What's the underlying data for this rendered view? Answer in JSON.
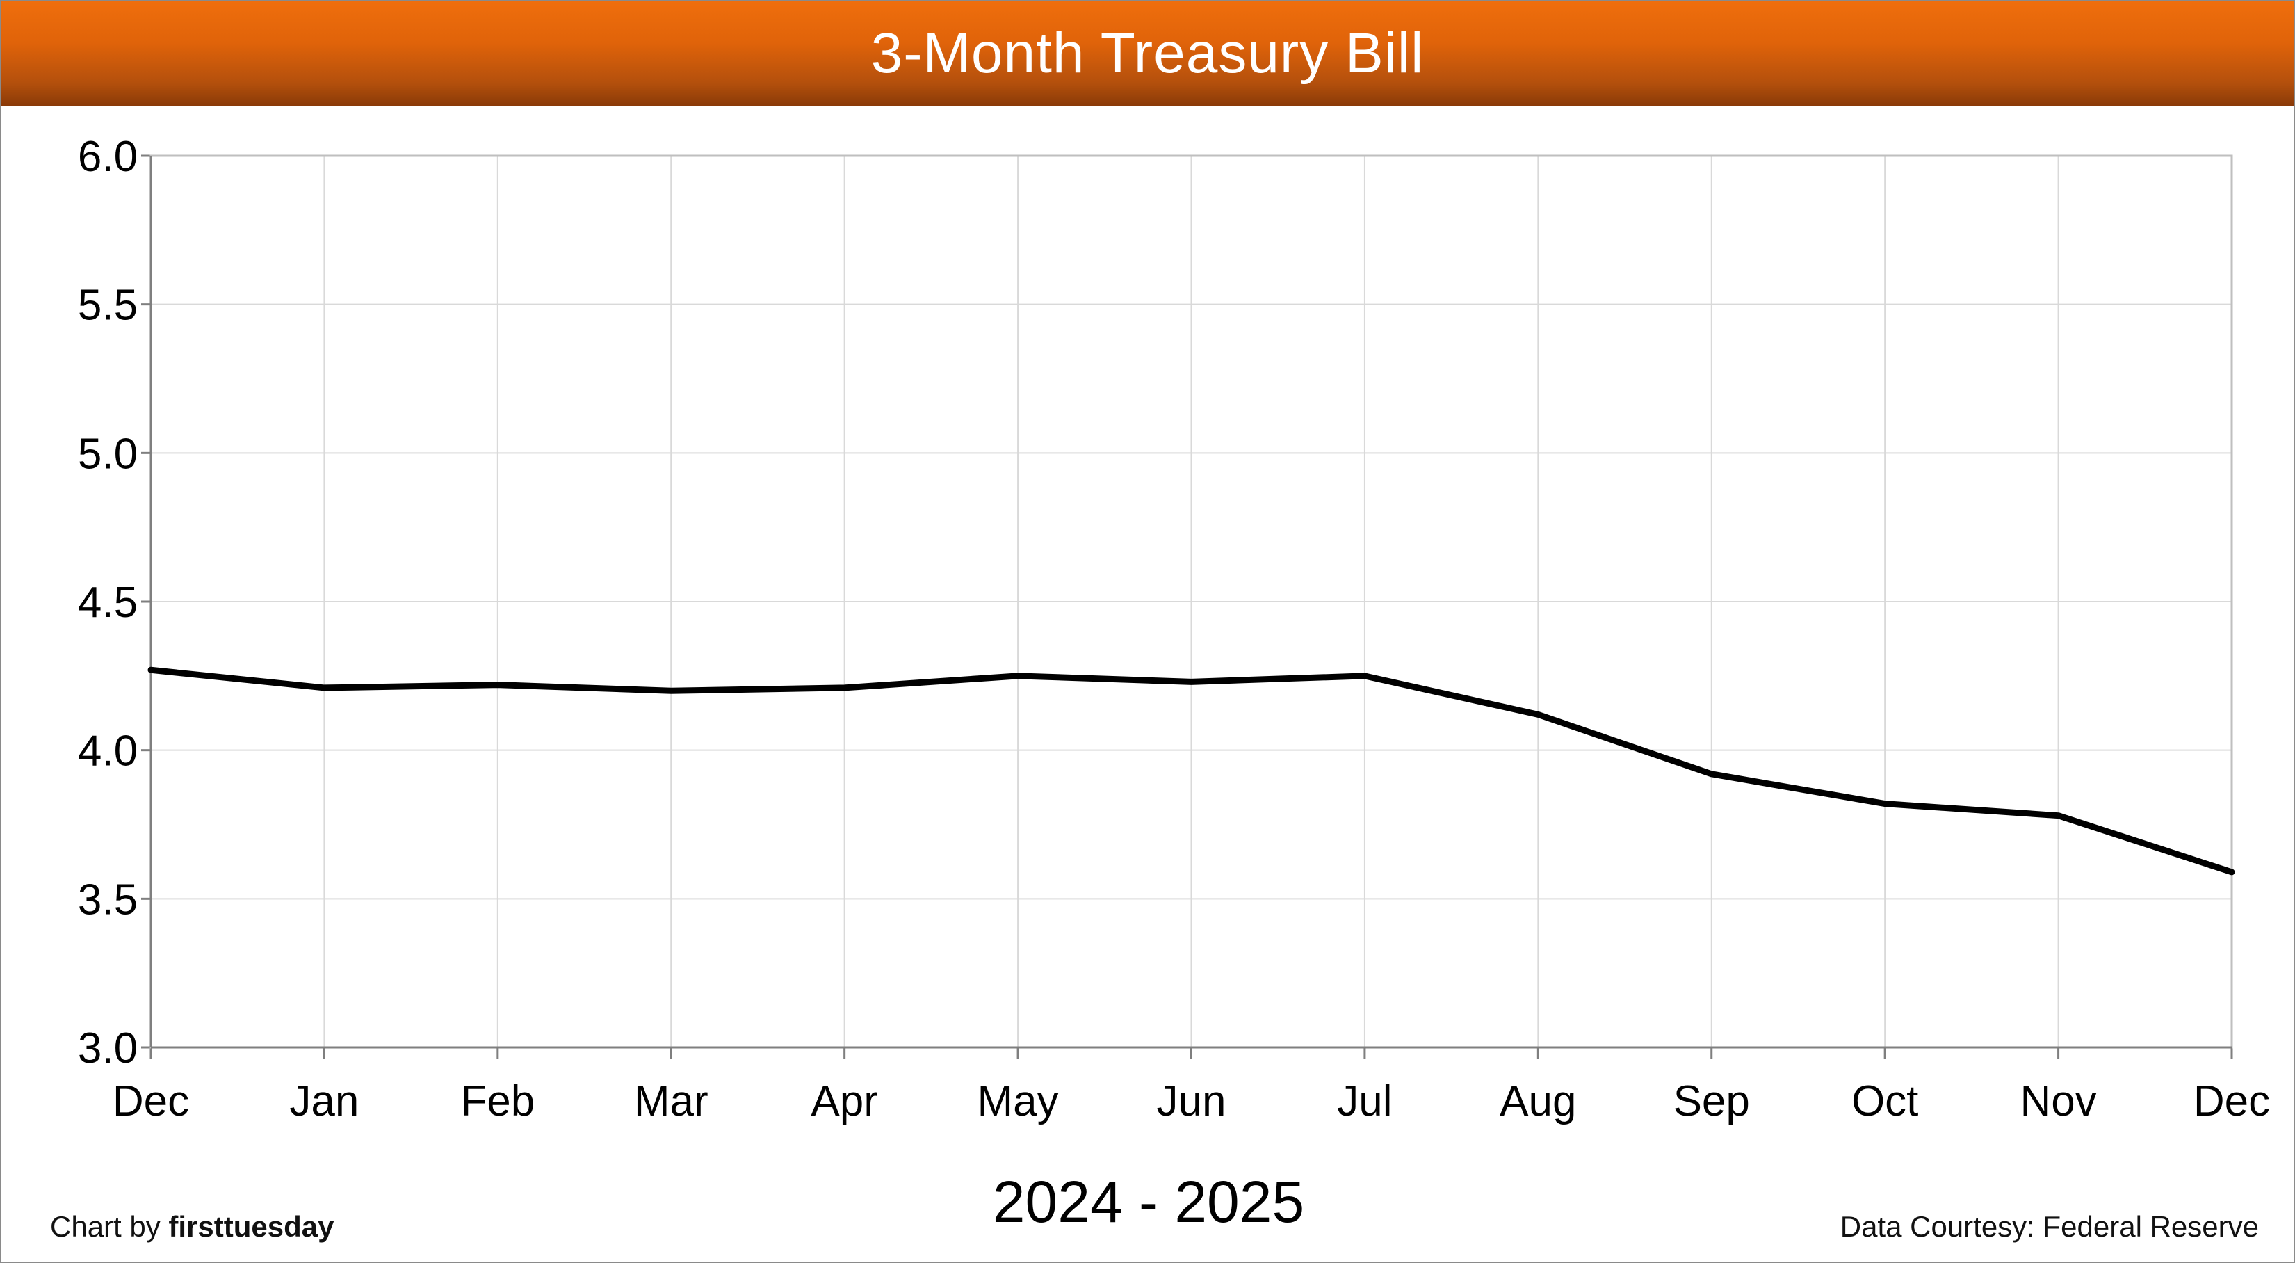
{
  "header": {
    "title": "3-Month Treasury Bill"
  },
  "footer": {
    "credit_prefix": "Chart by ",
    "credit_brand": "firsttuesday",
    "source": "Data Courtesy: Federal Reserve"
  },
  "colors": {
    "banner_top": "#ef6e0c",
    "banner_bottom": "#8a3a08",
    "line": "#000000",
    "grid": "#d9d9d9",
    "axis": "#7f7f7f"
  },
  "chart_data": {
    "type": "line",
    "title": "3-Month Treasury Bill",
    "xlabel": "2024 - 2025",
    "ylabel": "",
    "categories": [
      "Dec",
      "Jan",
      "Feb",
      "Mar",
      "Apr",
      "May",
      "Jun",
      "Jul",
      "Aug",
      "Sep",
      "Oct",
      "Nov",
      "Dec"
    ],
    "series": [
      {
        "values": [
          4.27,
          4.21,
          4.22,
          4.2,
          4.21,
          4.25,
          4.23,
          4.25,
          4.12,
          3.92,
          3.82,
          3.78,
          3.59
        ]
      }
    ],
    "ylim": [
      3.0,
      6.0
    ],
    "yticks": [
      3.0,
      3.5,
      4.0,
      4.5,
      5.0,
      5.5,
      6.0
    ],
    "ytick_labels": [
      "3.0",
      "3.5",
      "4.0",
      "4.5",
      "5.0",
      "5.5",
      "6.0"
    ],
    "grid": true,
    "legend": "none"
  }
}
